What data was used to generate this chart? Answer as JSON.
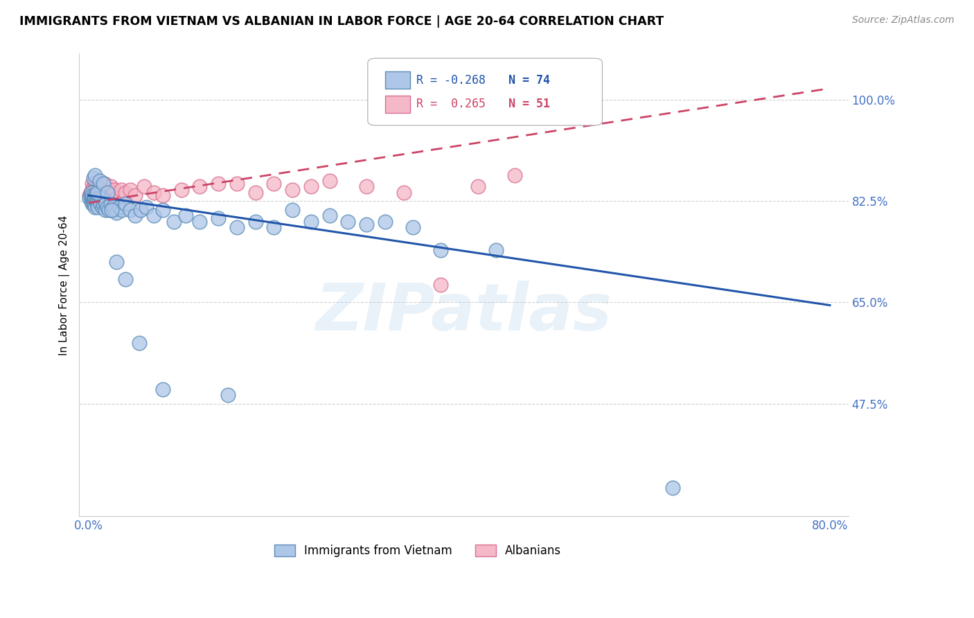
{
  "title": "IMMIGRANTS FROM VIETNAM VS ALBANIAN IN LABOR FORCE | AGE 20-64 CORRELATION CHART",
  "source": "Source: ZipAtlas.com",
  "ylabel": "In Labor Force | Age 20-64",
  "xlim": [
    -0.01,
    0.82
  ],
  "ylim": [
    0.28,
    1.08
  ],
  "yticks": [
    0.475,
    0.65,
    0.825,
    1.0
  ],
  "ytick_labels": [
    "47.5%",
    "65.0%",
    "82.5%",
    "100.0%"
  ],
  "xtick_positions": [
    0.0,
    0.1,
    0.2,
    0.3,
    0.4,
    0.5,
    0.6,
    0.7,
    0.8
  ],
  "xtick_labels": [
    "0.0%",
    "",
    "",
    "",
    "",
    "",
    "",
    "",
    "80.0%"
  ],
  "vietnam_fill": "#AEC6E8",
  "vietnam_edge": "#5B8DB8",
  "albania_fill": "#F4B8C8",
  "albania_edge": "#D97090",
  "trend_vietnam_color": "#2255AA",
  "trend_albania_color": "#CC4466",
  "R_vietnam": -0.268,
  "N_vietnam": 74,
  "R_albania": 0.265,
  "N_albania": 51,
  "watermark": "ZIPatlas",
  "axis_color": "#4472C4",
  "trend_viet_x0": 0.0,
  "trend_viet_y0": 0.835,
  "trend_viet_x1": 0.8,
  "trend_viet_y1": 0.645,
  "trend_alb_x0": 0.0,
  "trend_alb_y0": 0.822,
  "trend_alb_x1": 0.8,
  "trend_alb_y1": 1.02,
  "vietnam_x": [
    0.001,
    0.002,
    0.003,
    0.003,
    0.004,
    0.004,
    0.004,
    0.005,
    0.005,
    0.005,
    0.006,
    0.006,
    0.006,
    0.007,
    0.007,
    0.008,
    0.008,
    0.009,
    0.009,
    0.01,
    0.01,
    0.011,
    0.012,
    0.013,
    0.014,
    0.015,
    0.016,
    0.017,
    0.018,
    0.019,
    0.02,
    0.022,
    0.024,
    0.026,
    0.028,
    0.03,
    0.033,
    0.036,
    0.04,
    0.045,
    0.05,
    0.056,
    0.062,
    0.07,
    0.08,
    0.092,
    0.105,
    0.12,
    0.14,
    0.16,
    0.18,
    0.2,
    0.22,
    0.24,
    0.26,
    0.28,
    0.3,
    0.32,
    0.35,
    0.38,
    0.005,
    0.007,
    0.009,
    0.012,
    0.016,
    0.02,
    0.025,
    0.03,
    0.04,
    0.055,
    0.08,
    0.15,
    0.44,
    0.63
  ],
  "vietnam_y": [
    0.83,
    0.835,
    0.825,
    0.84,
    0.82,
    0.83,
    0.835,
    0.825,
    0.83,
    0.82,
    0.825,
    0.835,
    0.82,
    0.83,
    0.815,
    0.825,
    0.835,
    0.82,
    0.83,
    0.825,
    0.815,
    0.83,
    0.825,
    0.82,
    0.83,
    0.815,
    0.82,
    0.825,
    0.81,
    0.82,
    0.815,
    0.81,
    0.82,
    0.815,
    0.81,
    0.805,
    0.815,
    0.81,
    0.82,
    0.81,
    0.8,
    0.81,
    0.815,
    0.8,
    0.81,
    0.79,
    0.8,
    0.79,
    0.795,
    0.78,
    0.79,
    0.78,
    0.81,
    0.79,
    0.8,
    0.79,
    0.785,
    0.79,
    0.78,
    0.74,
    0.865,
    0.87,
    0.84,
    0.86,
    0.855,
    0.84,
    0.81,
    0.72,
    0.69,
    0.58,
    0.5,
    0.49,
    0.74,
    0.33
  ],
  "albania_x": [
    0.001,
    0.002,
    0.003,
    0.004,
    0.004,
    0.005,
    0.005,
    0.006,
    0.006,
    0.007,
    0.007,
    0.008,
    0.008,
    0.009,
    0.01,
    0.01,
    0.011,
    0.012,
    0.013,
    0.014,
    0.015,
    0.016,
    0.017,
    0.018,
    0.02,
    0.022,
    0.024,
    0.026,
    0.028,
    0.03,
    0.035,
    0.04,
    0.045,
    0.05,
    0.06,
    0.07,
    0.08,
    0.1,
    0.12,
    0.14,
    0.16,
    0.18,
    0.2,
    0.22,
    0.24,
    0.26,
    0.3,
    0.34,
    0.38,
    0.42,
    0.46
  ],
  "albania_y": [
    0.835,
    0.84,
    0.835,
    0.845,
    0.855,
    0.84,
    0.85,
    0.84,
    0.845,
    0.855,
    0.845,
    0.84,
    0.85,
    0.845,
    0.84,
    0.85,
    0.845,
    0.84,
    0.845,
    0.85,
    0.84,
    0.845,
    0.855,
    0.84,
    0.845,
    0.84,
    0.85,
    0.84,
    0.845,
    0.83,
    0.845,
    0.84,
    0.845,
    0.835,
    0.85,
    0.84,
    0.835,
    0.845,
    0.85,
    0.855,
    0.855,
    0.84,
    0.855,
    0.845,
    0.85,
    0.86,
    0.85,
    0.84,
    0.68,
    0.85,
    0.87
  ]
}
